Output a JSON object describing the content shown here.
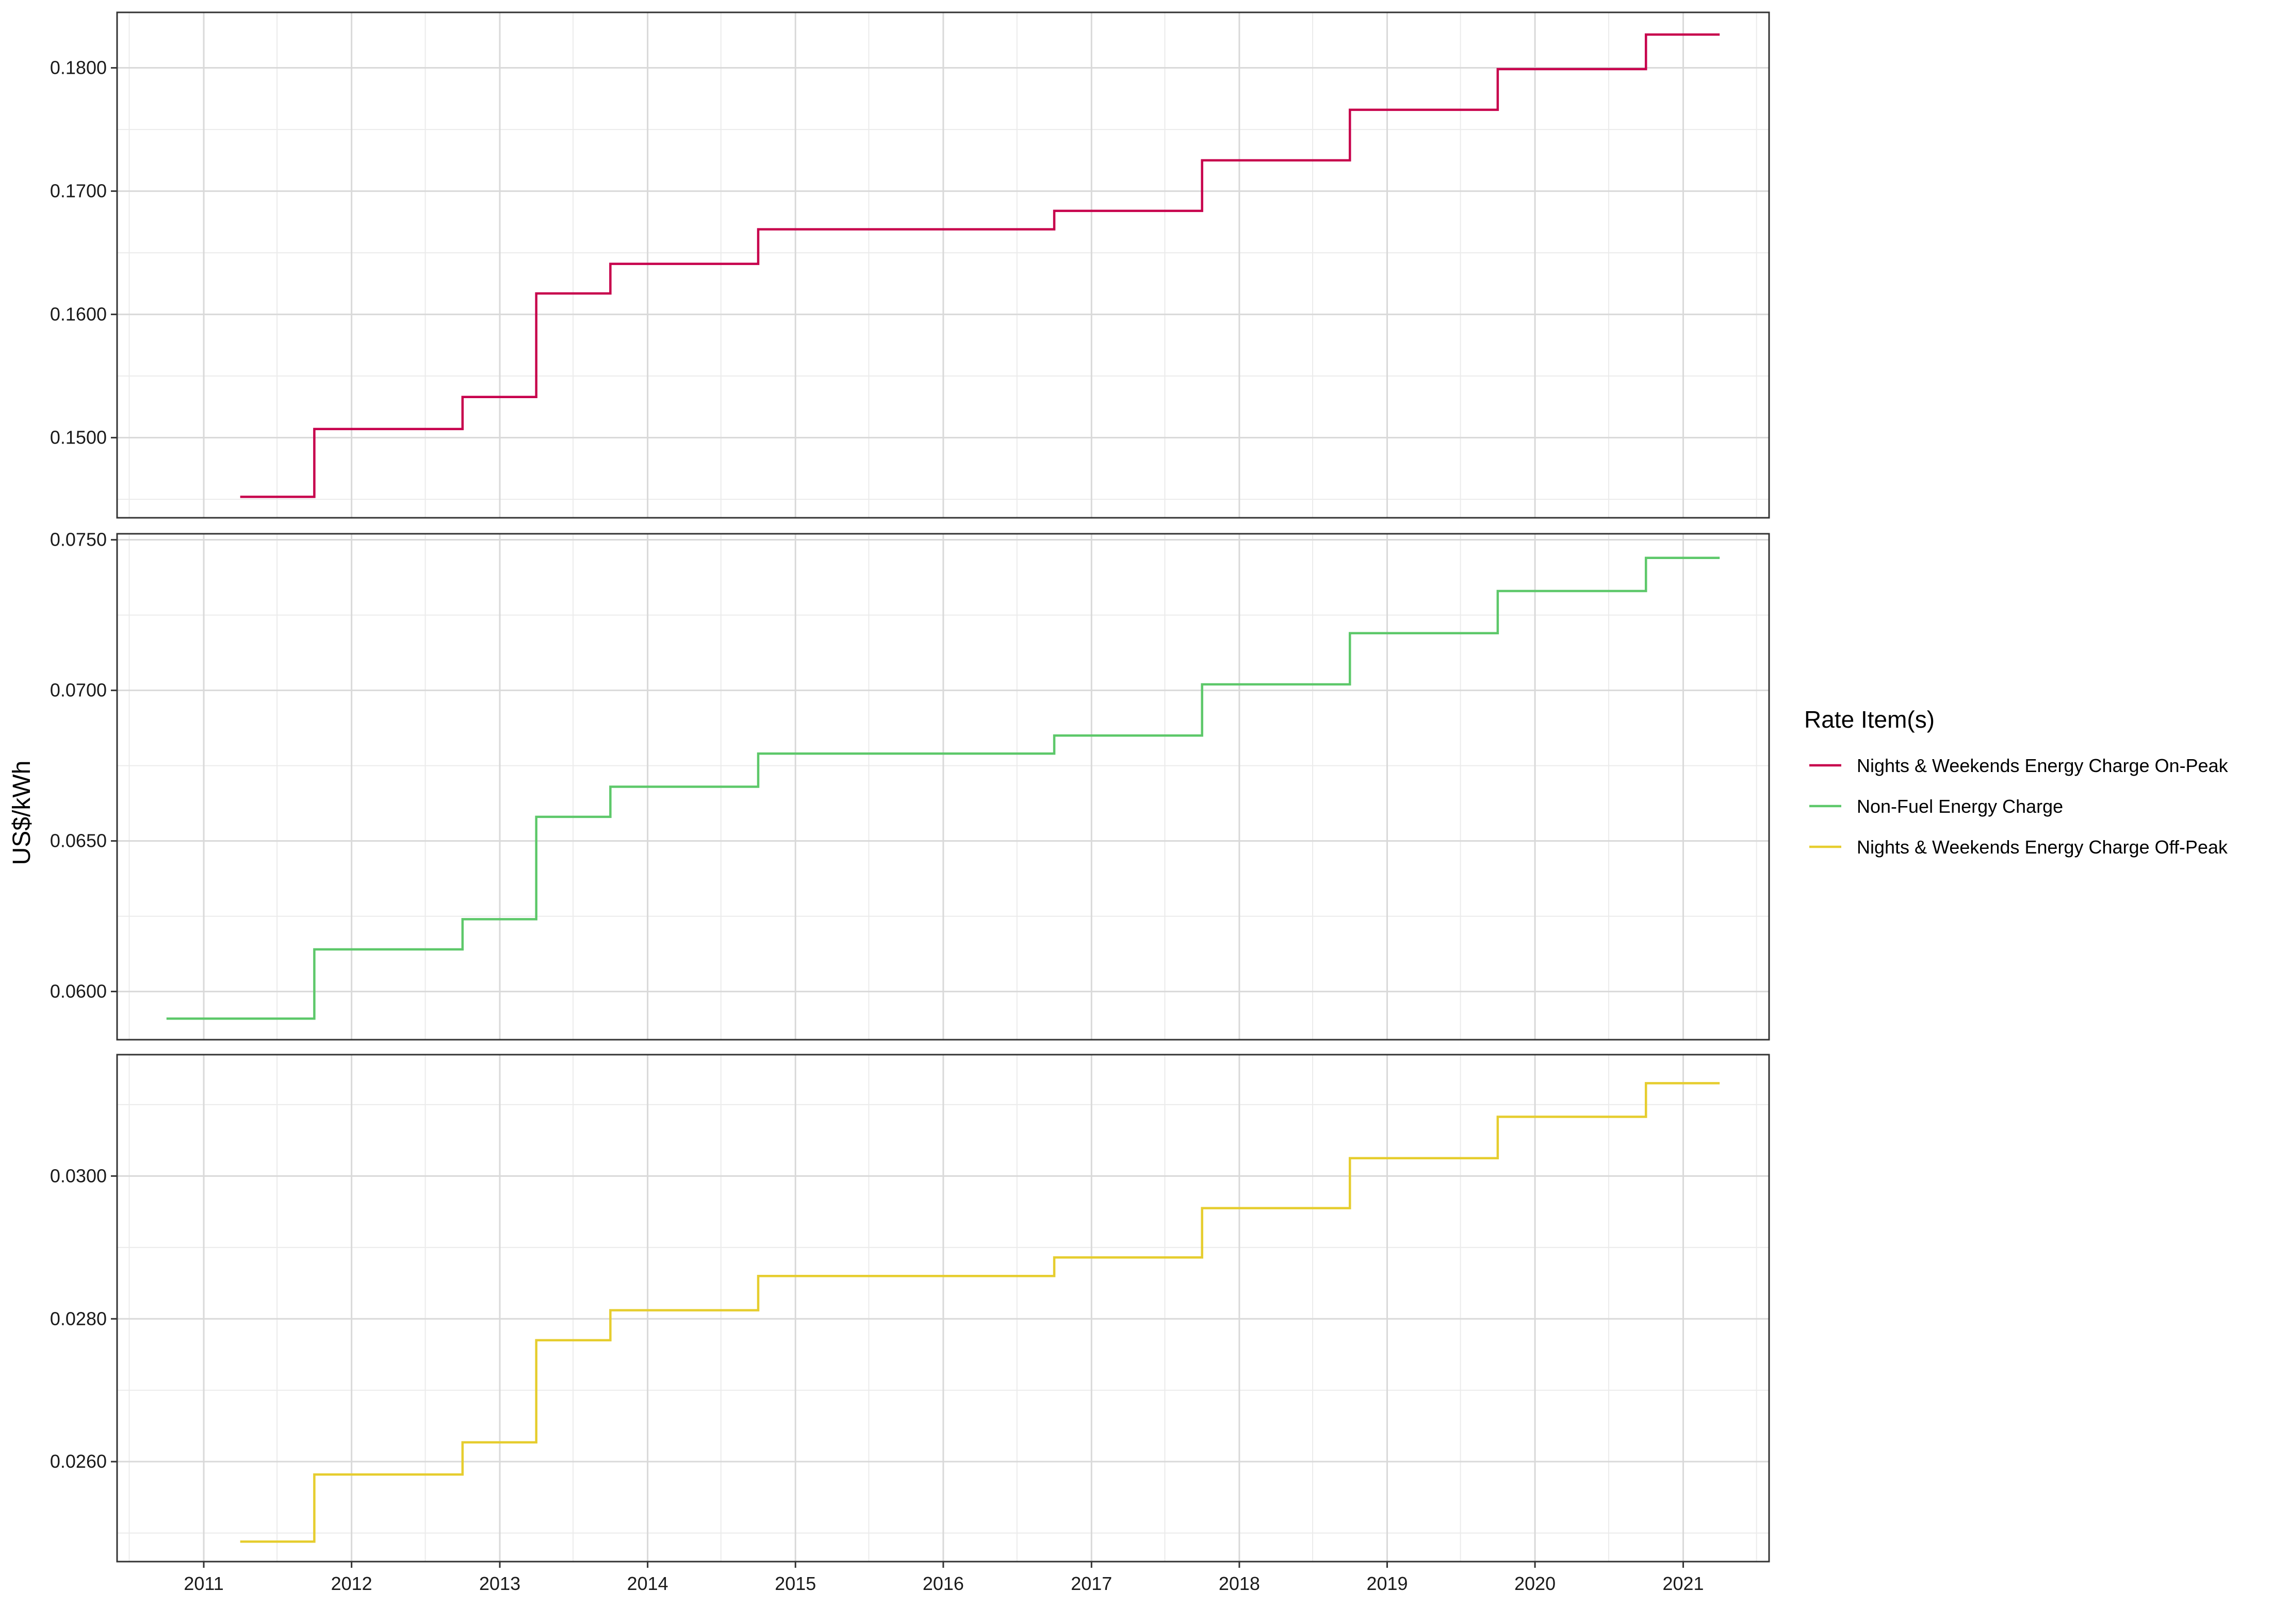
{
  "chart_data": {
    "type": "line",
    "step": true,
    "facets": "stacked-vertical",
    "ylabel": "US$/kWh",
    "x_ticks": [
      "2011",
      "2012",
      "2013",
      "2014",
      "2015",
      "2016",
      "2017",
      "2018",
      "2019",
      "2020",
      "2021"
    ],
    "xlim": [
      "2010-06-01",
      "2021-08-01"
    ],
    "grid": true,
    "legend": {
      "title": "Rate Item(s)",
      "position": "right"
    },
    "panels": [
      {
        "series_name": "Nights & Weekends Energy Charge On-Peak",
        "color": "#C7004C",
        "ylim": [
          0.1435,
          0.1845
        ],
        "y_ticks": [
          "0.1500",
          "0.1600",
          "0.1700",
          "0.1800"
        ],
        "x": [
          "2011-04-01",
          "2011-10-01",
          "2012-10-01",
          "2013-04-01",
          "2013-10-01",
          "2014-10-01",
          "2016-10-01",
          "2017-10-01",
          "2018-10-01",
          "2019-10-01",
          "2020-10-01",
          "2021-04-01"
        ],
        "values": [
          0.1452,
          0.1507,
          0.1533,
          0.1617,
          0.1641,
          0.1669,
          0.1684,
          0.1725,
          0.1766,
          0.1799,
          0.1827,
          0.1827
        ]
      },
      {
        "series_name": "Non-Fuel Energy Charge",
        "color": "#5DC86A",
        "ylim": [
          0.0584,
          0.0752
        ],
        "y_ticks": [
          "0.0600",
          "0.0650",
          "0.0700",
          "0.0750"
        ],
        "x": [
          "2010-10-01",
          "2011-10-01",
          "2012-10-01",
          "2013-04-01",
          "2013-10-01",
          "2014-10-01",
          "2016-10-01",
          "2017-10-01",
          "2018-10-01",
          "2019-10-01",
          "2020-10-01",
          "2021-04-01"
        ],
        "values": [
          0.0591,
          0.0614,
          0.0624,
          0.0658,
          0.0668,
          0.0679,
          0.0685,
          0.0702,
          0.0719,
          0.0733,
          0.0744,
          0.0744
        ]
      },
      {
        "series_name": "Nights & Weekends Energy Charge Off-Peak",
        "color": "#E6CD2E",
        "ylim": [
          0.0246,
          0.0317
        ],
        "y_ticks": [
          "0.0260",
          "0.0280",
          "0.0300"
        ],
        "x": [
          "2011-04-01",
          "2011-10-01",
          "2012-10-01",
          "2013-04-01",
          "2013-10-01",
          "2014-10-01",
          "2016-10-01",
          "2017-10-01",
          "2018-10-01",
          "2019-10-01",
          "2020-10-01",
          "2021-04-01"
        ],
        "values": [
          0.02488,
          0.02582,
          0.02627,
          0.0277,
          0.02812,
          0.0286,
          0.02886,
          0.02955,
          0.03025,
          0.03083,
          0.0313,
          0.0313
        ]
      }
    ]
  }
}
